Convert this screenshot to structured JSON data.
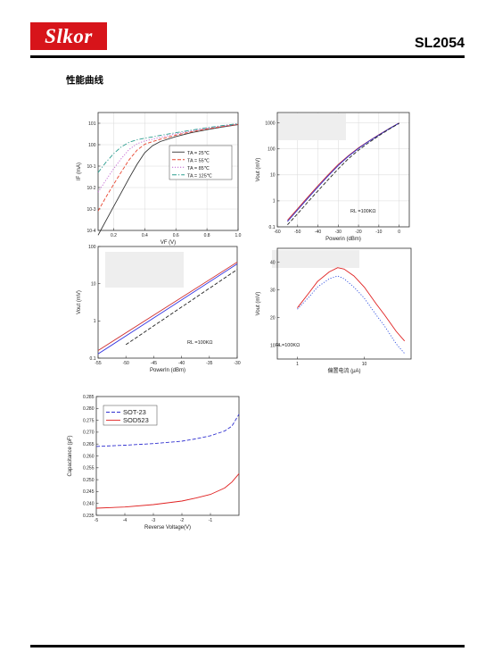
{
  "header": {
    "logo_text": "Slkor",
    "part_number": "SL2054"
  },
  "section_title": "性能曲线",
  "chart_data": [
    {
      "type": "line",
      "xlabel": "VF (V)",
      "ylabel": "IF (mA)",
      "xlim": [
        0.1,
        1.0
      ],
      "ylim_log10": [
        -4,
        1.5
      ],
      "log_y": true,
      "grid": true,
      "legend_position": "right",
      "x_ticks": [
        "0.2",
        "0.4",
        "0.6",
        "0.8",
        "1.0"
      ],
      "y_ticks": [
        "10-4",
        "10-3",
        "10-2",
        "10-1",
        "100",
        "101"
      ],
      "series": [
        {
          "name": "TA = 25℃",
          "color": "#333333",
          "dash": "solid",
          "x": [
            0.1,
            0.15,
            0.2,
            0.25,
            0.3,
            0.35,
            0.4,
            0.45,
            0.5,
            0.6,
            0.7,
            0.8,
            0.9,
            1.0
          ],
          "y": [
            6e-05,
            0.00028,
            0.0013,
            0.006,
            0.028,
            0.12,
            0.42,
            0.9,
            1.4,
            2.4,
            3.6,
            5.0,
            6.7,
            8.6
          ]
        },
        {
          "name": "TA = 55℃",
          "color": "#e8452f",
          "dash": "dash",
          "x": [
            0.1,
            0.15,
            0.2,
            0.25,
            0.3,
            0.35,
            0.4,
            0.45,
            0.5,
            0.6,
            0.7,
            0.8,
            0.9,
            1.0
          ],
          "y": [
            0.0008,
            0.0035,
            0.014,
            0.055,
            0.2,
            0.55,
            1.05,
            1.4,
            1.8,
            2.8,
            4.0,
            5.4,
            7.0,
            8.9
          ]
        },
        {
          "name": "TA = 85℃",
          "color": "#c060d0",
          "dash": "dot",
          "x": [
            0.1,
            0.15,
            0.2,
            0.25,
            0.3,
            0.35,
            0.4,
            0.45,
            0.5,
            0.6,
            0.7,
            0.8,
            0.9,
            1.0
          ],
          "y": [
            0.006,
            0.022,
            0.075,
            0.23,
            0.6,
            1.1,
            1.5,
            1.8,
            2.2,
            3.2,
            4.4,
            5.8,
            7.4,
            9.2
          ]
        },
        {
          "name": "TA = 125℃",
          "color": "#2a9d8f",
          "dash": "dashdot",
          "x": [
            0.1,
            0.15,
            0.2,
            0.25,
            0.3,
            0.35,
            0.4,
            0.45,
            0.5,
            0.6,
            0.7,
            0.8,
            0.9,
            1.0
          ],
          "y": [
            0.05,
            0.15,
            0.38,
            0.8,
            1.3,
            1.7,
            2.0,
            2.3,
            2.7,
            3.6,
            4.8,
            6.2,
            7.8,
            9.5
          ]
        }
      ]
    },
    {
      "type": "line",
      "xlabel": "Powerin (dBm)",
      "ylabel": "Vout (mV)",
      "xlim": [
        -60,
        5
      ],
      "ylim_log10": [
        -1,
        3.4
      ],
      "log_y": true,
      "grid": true,
      "annotation": "RL =100KΩ",
      "x_ticks": [
        "-60",
        "-50",
        "-40",
        "-30",
        "-20",
        "-10",
        "0"
      ],
      "y_ticks": [
        "0.1",
        "1",
        "10",
        "100",
        "1000"
      ],
      "series": [
        {
          "color": "#d03030",
          "dash": "solid",
          "x": [
            -55,
            -50,
            -45,
            -40,
            -35,
            -30,
            -25,
            -20,
            -15,
            -10,
            -5,
            0
          ],
          "y": [
            0.18,
            0.5,
            1.4,
            3.8,
            10,
            25,
            55,
            110,
            200,
            350,
            600,
            1000
          ]
        },
        {
          "color": "#3030d0",
          "dash": "solid",
          "x": [
            -55,
            -50,
            -45,
            -40,
            -35,
            -30,
            -25,
            -20,
            -15,
            -10,
            -5,
            0
          ],
          "y": [
            0.16,
            0.45,
            1.25,
            3.4,
            9,
            23,
            52,
            105,
            195,
            340,
            590,
            990
          ]
        },
        {
          "color": "#222222",
          "dash": "dash",
          "x": [
            -55,
            -50,
            -45,
            -40,
            -35,
            -30,
            -25,
            -20,
            -15,
            -10,
            -5,
            0
          ],
          "y": [
            0.12,
            0.32,
            0.9,
            2.4,
            6.5,
            17,
            42,
            90,
            175,
            320,
            570,
            960
          ]
        }
      ]
    },
    {
      "type": "line",
      "xlabel": "PowerIn (dBm)",
      "ylabel": "Vout (mV)",
      "xlim": [
        -55,
        -30
      ],
      "ylim_log10": [
        -1,
        2
      ],
      "log_y": true,
      "grid": false,
      "annotation": "RL =100KΩ",
      "x_ticks": [
        "-55",
        "-50",
        "-45",
        "-40",
        "-35",
        "-30"
      ],
      "y_ticks": [
        "0.1",
        "1",
        "10",
        "100"
      ],
      "series": [
        {
          "color": "#d03030",
          "dash": "solid",
          "x": [
            -55,
            -30
          ],
          "y": [
            0.16,
            38
          ]
        },
        {
          "color": "#3030e0",
          "dash": "solid",
          "x": [
            -55,
            -30
          ],
          "y": [
            0.13,
            34
          ]
        },
        {
          "color": "#222222",
          "dash": "dash",
          "x": [
            -50,
            -30
          ],
          "y": [
            0.23,
            24
          ]
        }
      ]
    },
    {
      "type": "line",
      "xlabel": "偏置电流 (μA)",
      "ylabel": "Vout (mV)",
      "xlim_log10": [
        -0.3,
        1.7
      ],
      "ylim": [
        5,
        45
      ],
      "log_x": true,
      "grid": false,
      "annotation": "RL=100KΩ",
      "x_ticks": [
        "1",
        "10"
      ],
      "y_ticks": [
        "10",
        "20",
        "30",
        "40"
      ],
      "series": [
        {
          "color": "#e02020",
          "dash": "solid",
          "x": [
            1,
            1.5,
            2,
            3,
            4,
            5,
            7,
            10,
            15,
            20,
            30,
            40
          ],
          "y": [
            23.5,
            29,
            33,
            36.5,
            38,
            37.5,
            35,
            31,
            25,
            21,
            15,
            11.5
          ]
        },
        {
          "color": "#3050e0",
          "dash": "dot",
          "x": [
            1,
            1.5,
            2,
            3,
            4,
            5,
            7,
            10,
            15,
            20,
            30,
            40
          ],
          "y": [
            23,
            27.5,
            31,
            34,
            35,
            34,
            31,
            27,
            21,
            17,
            10.5,
            7
          ]
        }
      ]
    },
    {
      "type": "line",
      "xlabel": "Reverse Voltage(V)",
      "ylabel": "Capacitance (pF)",
      "xlim": [
        -5,
        0
      ],
      "ylim": [
        0.235,
        0.285
      ],
      "grid": false,
      "legend_position": "top-left",
      "x_ticks": [
        "-5",
        "-4",
        "-3",
        "-2",
        "-1"
      ],
      "y_ticks": [
        "0.235",
        "0.240",
        "0.245",
        "0.250",
        "0.255",
        "0.260",
        "0.265",
        "0.270",
        "0.275",
        "0.280",
        "0.285"
      ],
      "series": [
        {
          "name": "SOT-23",
          "color": "#3030d0",
          "dash": "dash",
          "x": [
            -5,
            -4,
            -3,
            -2,
            -1.5,
            -1,
            -0.5,
            -0.25,
            0
          ],
          "y": [
            0.264,
            0.2645,
            0.2652,
            0.2662,
            0.2672,
            0.2685,
            0.2705,
            0.2725,
            0.2775
          ]
        },
        {
          "name": "SOD523",
          "color": "#e02020",
          "dash": "solid",
          "x": [
            -5,
            -4,
            -3,
            -2,
            -1.5,
            -1,
            -0.5,
            -0.25,
            0
          ],
          "y": [
            0.238,
            0.2385,
            0.2395,
            0.241,
            0.2423,
            0.2438,
            0.2465,
            0.249,
            0.2525
          ]
        }
      ]
    }
  ]
}
